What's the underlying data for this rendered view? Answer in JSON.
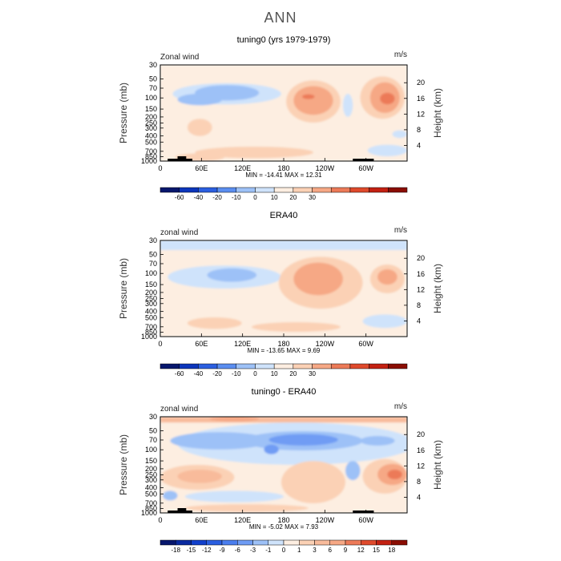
{
  "page_title": "ANN",
  "chart_data": [
    {
      "type": "heatmap",
      "title": "tuning0 (yrs 1979-1979)",
      "corner_left": "Zonal wind",
      "corner_right": "m/s",
      "ylabel": "Pressure (mb)",
      "ylabel_right": "Height (km)",
      "y_ticks": [
        "30",
        "50",
        "70",
        "100",
        "150",
        "200",
        "250",
        "300",
        "400",
        "500",
        "700",
        "850",
        "1000"
      ],
      "y_right_ticks": [
        "20",
        "16",
        "12",
        "8",
        "4"
      ],
      "x_ticks": [
        "0",
        "60E",
        "120E",
        "180",
        "120W",
        "60W"
      ],
      "stats": "MIN = -14.41   MAX =  12.31",
      "colorbar_labels": [
        "-60",
        "-40",
        "-20",
        "-10",
        "0",
        "10",
        "20",
        "30"
      ],
      "colorbar_colors": [
        "#07176d",
        "#0c35bb",
        "#2b5fe0",
        "#5b8ef0",
        "#9dc1f7",
        "#cfe3fb",
        "#fdeee1",
        "#fbd1b5",
        "#f6a885",
        "#ec7a58",
        "#df4a2c",
        "#c32112",
        "#8a0d03"
      ]
    },
    {
      "type": "heatmap",
      "title": "ERA40",
      "corner_left": "zonal wind",
      "corner_right": "m/s",
      "ylabel": "Pressure (mb)",
      "ylabel_right": "Height (km)",
      "y_ticks": [
        "30",
        "50",
        "70",
        "100",
        "150",
        "200",
        "250",
        "300",
        "400",
        "500",
        "700",
        "850",
        "1000"
      ],
      "y_right_ticks": [
        "20",
        "16",
        "12",
        "8",
        "4"
      ],
      "x_ticks": [
        "0",
        "60E",
        "120E",
        "180",
        "120W",
        "60W"
      ],
      "stats": "MIN = -13.65   MAX =   9.69",
      "colorbar_labels": [
        "-60",
        "-40",
        "-20",
        "-10",
        "0",
        "10",
        "20",
        "30"
      ],
      "colorbar_colors": [
        "#07176d",
        "#0c35bb",
        "#2b5fe0",
        "#5b8ef0",
        "#9dc1f7",
        "#cfe3fb",
        "#fdeee1",
        "#fbd1b5",
        "#f6a885",
        "#ec7a58",
        "#df4a2c",
        "#c32112",
        "#8a0d03"
      ]
    },
    {
      "type": "heatmap",
      "title": "tuning0 - ERA40",
      "corner_left": "zonal wind",
      "corner_right": "m/s",
      "ylabel": "Pressure (mb)",
      "ylabel_right": "Height (km)",
      "y_ticks": [
        "30",
        "50",
        "70",
        "100",
        "150",
        "200",
        "250",
        "300",
        "400",
        "500",
        "700",
        "850",
        "1000"
      ],
      "y_right_ticks": [
        "20",
        "16",
        "12",
        "8",
        "4"
      ],
      "x_ticks": [
        "0",
        "60E",
        "120E",
        "180",
        "120W",
        "60W"
      ],
      "stats": "MIN =  -5.02   MAX =   7.93",
      "colorbar_labels": [
        "-18",
        "-15",
        "-12",
        "-9",
        "-6",
        "-3",
        "-1",
        "0",
        "1",
        "3",
        "6",
        "9",
        "12",
        "15",
        "18"
      ],
      "colorbar_colors": [
        "#07176d",
        "#0a2aa0",
        "#1240cc",
        "#2b5fe0",
        "#4a7eee",
        "#6f9cf4",
        "#9dc1f7",
        "#cfe3fb",
        "#fdeee1",
        "#fbd1b5",
        "#f8bb9b",
        "#f6a885",
        "#ec7a58",
        "#df4a2c",
        "#c32112",
        "#8a0d03"
      ]
    }
  ]
}
